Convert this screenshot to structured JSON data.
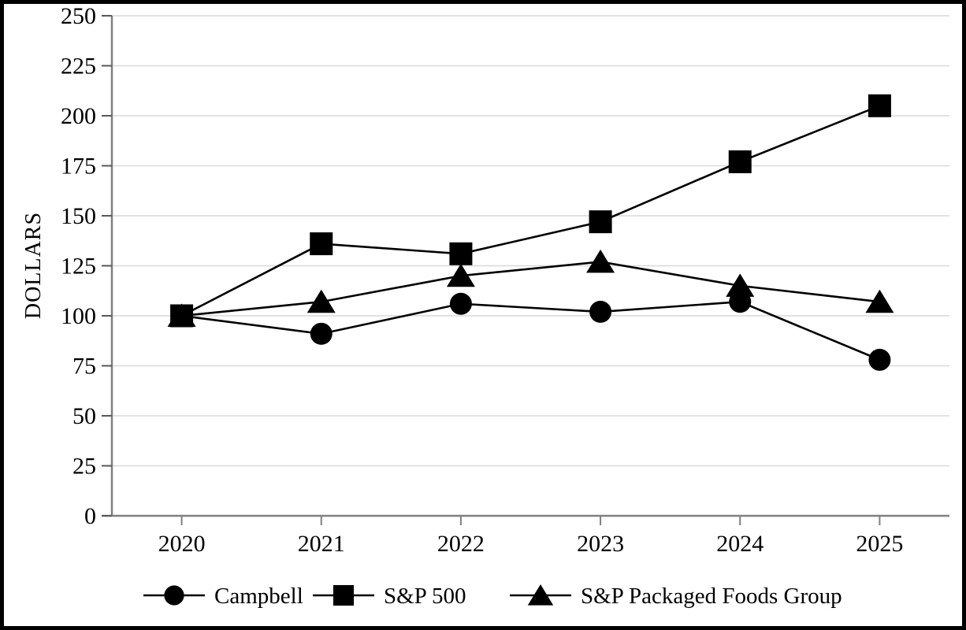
{
  "chart_data": {
    "type": "line",
    "title": "",
    "ylabel": "DOLLARS",
    "xlabel": "",
    "ylim": [
      0,
      250
    ],
    "ytick_step": 25,
    "grid": "horizontal-only",
    "legend_position": "bottom-center",
    "categories": [
      "2020",
      "2021",
      "2022",
      "2023",
      "2024",
      "2025"
    ],
    "series": [
      {
        "name": "Campbell",
        "marker": "circle",
        "values": [
          100,
          91,
          106,
          102,
          107,
          78
        ]
      },
      {
        "name": "S&P 500",
        "marker": "square",
        "values": [
          100,
          136,
          131,
          147,
          177,
          205
        ]
      },
      {
        "name": "S&P Packaged Foods Group",
        "marker": "triangle",
        "values": [
          100,
          107,
          120,
          127,
          115,
          107
        ]
      }
    ],
    "draw_order": [
      2,
      0,
      1
    ],
    "colors": {
      "series": "#000000",
      "gridline": "#d9d9d9",
      "axis": "#808080",
      "tick": "#595959",
      "text": "#000000",
      "background": "#ffffff",
      "border": "#000000"
    }
  }
}
